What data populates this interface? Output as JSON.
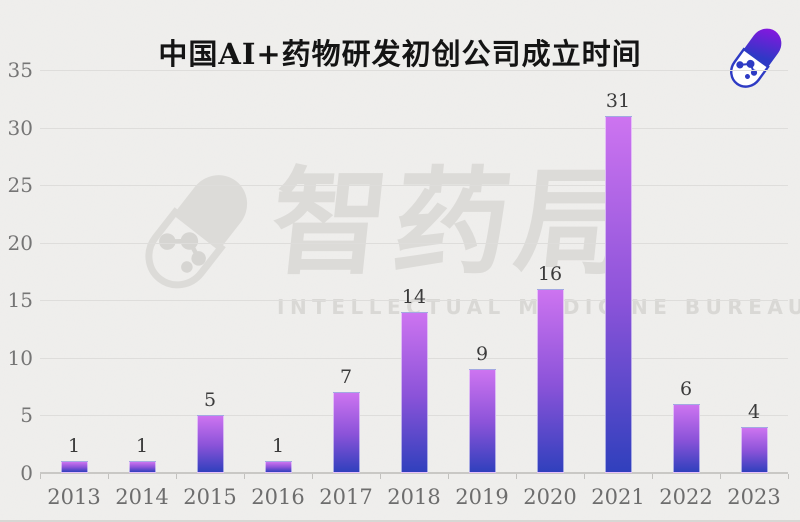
{
  "header": {
    "title": "中国AI+药物研发初创公司成立时间"
  },
  "watermark": {
    "zh": "智药局",
    "en": "INTELLECTUAL MEDICINE BUREAU",
    "color": "#dcdbd8"
  },
  "icons": {
    "logo": "pill-capsule-molecule-icon",
    "watermark_icon": "pill-capsule-molecule-icon"
  },
  "colors": {
    "background": "#f0efed",
    "bar_gradient_top": "#cd74f0",
    "bar_gradient_mid": "#8b53d9",
    "bar_gradient_bottom": "#3040bd",
    "gridline": "#dedddb",
    "axis_text": "#6d6d6d",
    "value_text": "#3b3b3b",
    "title_text": "#141414",
    "logo_purple": "#9013e2",
    "logo_blue": "#2e3bc4"
  },
  "chart_data": {
    "type": "bar",
    "title": "中国AI+药物研发初创公司成立时间",
    "categories": [
      "2013",
      "2014",
      "2015",
      "2016",
      "2017",
      "2018",
      "2019",
      "2020",
      "2021",
      "2022",
      "2023"
    ],
    "values": [
      1,
      1,
      5,
      1,
      7,
      14,
      9,
      16,
      31,
      6,
      4
    ],
    "xlabel": "",
    "ylabel": "",
    "ylim": [
      0,
      35
    ],
    "yticks": [
      0,
      5,
      10,
      15,
      20,
      25,
      30,
      35
    ],
    "grid": true,
    "legend": "none",
    "value_labels": "above-bars"
  }
}
